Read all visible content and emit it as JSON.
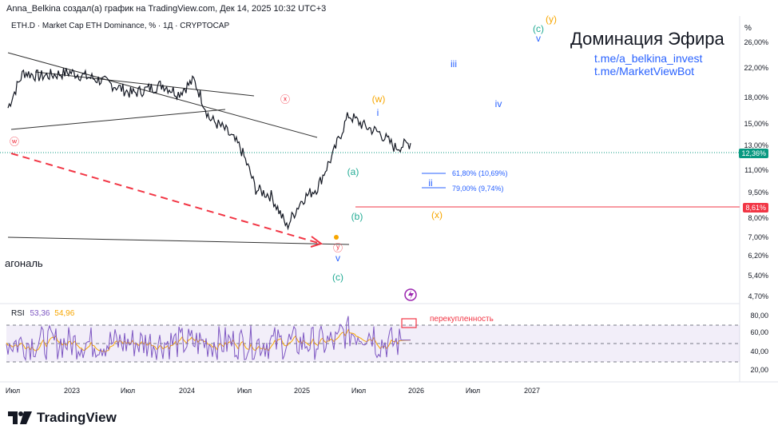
{
  "header": {
    "attribution": "Anna_Belkina создал(а) график на TradingView.com, Дек 14, 2025 10:32 UTC+3",
    "symbol_line": "ETH.D · Market Cap ETH Dominance, % · 1Д · CRYPTOCAP"
  },
  "overlay": {
    "title": "Доминация Эфира",
    "link1": "t.me/a_belkina_invest",
    "link2": "t.me/MarketViewBot",
    "diagonal_label": "агональ",
    "overbought_label": "перекупленность"
  },
  "axis": {
    "unit": "%",
    "price_ticks": [
      "26,00%",
      "22,00%",
      "18,00%",
      "15,00%",
      "13,00%",
      "11,00%",
      "9,50%",
      "8,00%",
      "7,00%",
      "6,20%",
      "5,40%",
      "4,70%"
    ],
    "rsi_ticks": [
      "80,00",
      "60,00",
      "40,00",
      "20,00"
    ],
    "time_ticks": [
      "Июл",
      "2023",
      "Июл",
      "2024",
      "Июл",
      "2025",
      "Июл",
      "2026",
      "Июл",
      "2027"
    ],
    "current_price": "12,36%",
    "level_price": "8,61%"
  },
  "fib": {
    "level1": "61,80% (10,69%)",
    "level2": "79,00% (9,74%)"
  },
  "waves": {
    "w_red": "ⓦ",
    "x_red": "ⓧ",
    "y_red": "ⓨ",
    "w_orange": "(w)",
    "x_orange": "(x)",
    "y_orange": "(y)",
    "a_green": "(a)",
    "b_green": "(b)",
    "c_green_low": "(c)",
    "c_green_high": "(c)",
    "v_blue_low": "v",
    "v_blue_high": "v",
    "i_blue": "i",
    "ii_blue": "ii",
    "iii_blue": "iii",
    "iv_blue": "iv"
  },
  "rsi": {
    "name": "RSI",
    "value1": "53,36",
    "value2": "54,96"
  },
  "brand": {
    "name": "TradingView"
  },
  "colors": {
    "price_line": "#131722",
    "rsi_line": "#7e57c2",
    "rsi_ma": "#f7a600",
    "red": "#f23645",
    "blue": "#2962ff",
    "green": "#22ab94",
    "orange": "#f7a600",
    "current_badge": "#089981"
  },
  "chart_data": {
    "type": "line",
    "title": "ETH.D · Market Cap ETH Dominance, % · 1Д · CRYPTOCAP",
    "ylabel": "%",
    "y_scale": "log",
    "ylim": [
      4.4,
      28
    ],
    "x_labels": [
      "Июл",
      "2023",
      "Июл",
      "2024",
      "Июл",
      "2025",
      "Июл",
      "2026",
      "Июл",
      "2027"
    ],
    "x": [
      "2022-07",
      "2022-09",
      "2022-11",
      "2023-01",
      "2023-03",
      "2023-05",
      "2023-07",
      "2023-09",
      "2023-11",
      "2024-01",
      "2024-03",
      "2024-05",
      "2024-07",
      "2024-09",
      "2024-11",
      "2025-01",
      "2025-02",
      "2025-03",
      "2025-04",
      "2025-05",
      "2025-06",
      "2025-07",
      "2025-08",
      "2025-09",
      "2025-10",
      "2025-11",
      "2025-12"
    ],
    "series": [
      {
        "name": "ETH.D",
        "values": [
          15.5,
          19.5,
          19.0,
          19.2,
          19.5,
          19.0,
          18.5,
          17.8,
          17.0,
          17.5,
          18.0,
          17.0,
          18.5,
          14.5,
          13.5,
          12.0,
          9.2,
          8.8,
          7.2,
          8.6,
          9.3,
          11.5,
          14.8,
          13.8,
          13.2,
          12.0,
          12.36
        ]
      }
    ],
    "current_value": 12.36,
    "horizontal_level": 8.61,
    "fib_levels": [
      {
        "label": "61,80%",
        "value": 10.69
      },
      {
        "label": "79,00%",
        "value": 9.74
      }
    ],
    "rsi": {
      "name": "RSI",
      "value": 53.36,
      "ma_value": 54.96,
      "ylim": [
        10,
        90
      ],
      "bands": [
        30,
        70
      ],
      "overbought_marker": 72
    },
    "annotations": [
      "ⓦ",
      "ⓧ",
      "ⓨ",
      "(w)",
      "(x)",
      "(y)",
      "(a)",
      "(b)",
      "(c)",
      "i",
      "ii",
      "iii",
      "iv",
      "v"
    ]
  }
}
